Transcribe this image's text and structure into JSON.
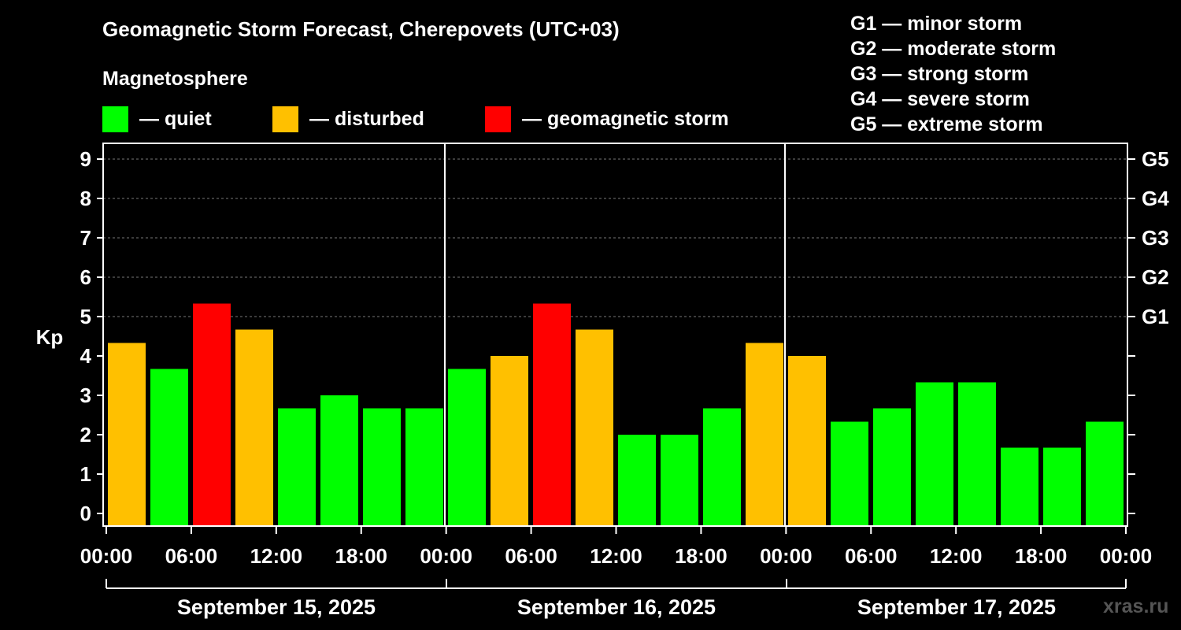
{
  "header": {
    "title": "Geomagnetic Storm Forecast, Cherepovets (UTC+03)",
    "subtitle": "Magnetosphere"
  },
  "legend": [
    {
      "label": "— quiet",
      "color": "#00ff00"
    },
    {
      "label": "— disturbed",
      "color": "#ffc000"
    },
    {
      "label": "— geomagnetic storm",
      "color": "#ff0000"
    }
  ],
  "g_scale_legend": [
    "G1 — minor storm",
    "G2 — moderate storm",
    "G3 — strong storm",
    "G4 — severe storm",
    "G5 — extreme storm"
  ],
  "watermark": "xras.ru",
  "chart_data": {
    "type": "bar",
    "ylabel": "Kp",
    "ylim": [
      0,
      9
    ],
    "y_ticks": [
      "0",
      "1",
      "2",
      "3",
      "4",
      "5",
      "6",
      "7",
      "8",
      "9"
    ],
    "right_ticks": [
      {
        "kp": 5,
        "label": "G1"
      },
      {
        "kp": 6,
        "label": "G2"
      },
      {
        "kp": 7,
        "label": "G3"
      },
      {
        "kp": 8,
        "label": "G4"
      },
      {
        "kp": 9,
        "label": "G5"
      }
    ],
    "x_tick_labels": [
      "00:00",
      "06:00",
      "12:00",
      "18:00",
      "00:00",
      "06:00",
      "12:00",
      "18:00",
      "00:00",
      "06:00",
      "12:00",
      "18:00",
      "00:00"
    ],
    "days": [
      "September 15, 2025",
      "September 16, 2025",
      "September 17, 2025"
    ],
    "colors": {
      "quiet": "#00ff00",
      "disturbed": "#ffc000",
      "storm": "#ff0000"
    },
    "series": [
      {
        "day": "September 15, 2025",
        "values": [
          4.33,
          3.67,
          5.33,
          4.67,
          2.67,
          3.0,
          2.67,
          2.67
        ],
        "levels": [
          "disturbed",
          "quiet",
          "storm",
          "disturbed",
          "quiet",
          "quiet",
          "quiet",
          "quiet"
        ]
      },
      {
        "day": "September 16, 2025",
        "values": [
          3.67,
          4.0,
          5.33,
          4.67,
          2.0,
          2.0,
          2.67,
          4.33
        ],
        "levels": [
          "quiet",
          "disturbed",
          "storm",
          "disturbed",
          "quiet",
          "quiet",
          "quiet",
          "disturbed"
        ]
      },
      {
        "day": "September 17, 2025",
        "values": [
          4.0,
          2.33,
          2.67,
          3.33,
          3.33,
          1.67,
          1.67,
          2.33
        ],
        "levels": [
          "disturbed",
          "quiet",
          "quiet",
          "quiet",
          "quiet",
          "quiet",
          "quiet",
          "quiet"
        ]
      }
    ]
  }
}
